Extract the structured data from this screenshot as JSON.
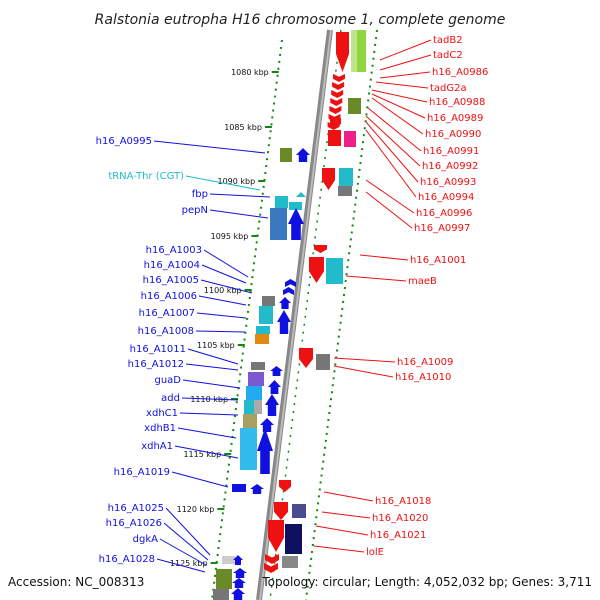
{
  "title": "Ralstonia eutropha H16 chromosome 1, complete genome",
  "footer": {
    "accession": "Accession: NC_008313",
    "summary": "Topology: circular; Length: 4,052,032 bp; Genes: 3,711"
  },
  "colors": {
    "forward": "#1010e0",
    "reverse": "#ee1111",
    "rna": "#22bbcc",
    "tick": "#118811",
    "backbone": "#888888"
  },
  "kbp_ticks": [
    "1080 kbp",
    "1085 kbp",
    "1090 kbp",
    "1095 kbp",
    "1100 kbp",
    "1105 kbp",
    "1110 kbp",
    "1115 kbp",
    "1120 kbp",
    "1125 kbp"
  ],
  "left_genes": [
    "h16_A0995",
    "tRNA-Thr (CGT)",
    "fbp",
    "pepN",
    "h16_A1003",
    "h16_A1004",
    "h16_A1005",
    "h16_A1006",
    "h16_A1007",
    "h16_A1008",
    "h16_A1011",
    "h16_A1012",
    "guaD",
    "add",
    "xdhC1",
    "xdhB1",
    "xdhA1",
    "h16_A1019",
    "h16_A1025",
    "h16_A1026",
    "dgkA",
    "h16_A1028"
  ],
  "right_genes": [
    "tadB2",
    "tadC2",
    "h16_A0986",
    "tadG2a",
    "h16_A0988",
    "h16_A0989",
    "h16_A0990",
    "h16_A0991",
    "h16_A0992",
    "h16_A0993",
    "h16_A0994",
    "h16_A0996",
    "h16_A0997",
    "h16_A1001",
    "maeB",
    "h16_A1009",
    "h16_A1010",
    "h16_A1018",
    "h16_A1020",
    "h16_A1021",
    "lolE"
  ]
}
